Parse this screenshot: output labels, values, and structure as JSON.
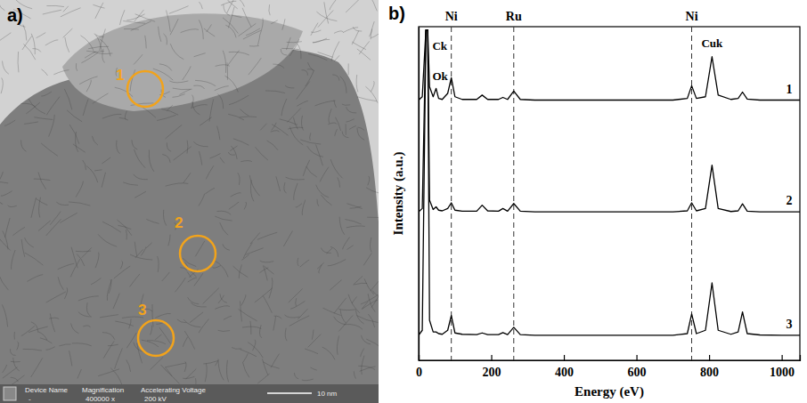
{
  "image_panel": {
    "label": "a)",
    "regions": [
      "1",
      "2",
      "3"
    ],
    "info_bar": {
      "headers": [
        "Device Name",
        "Magnification",
        "Accelerating Voltage"
      ],
      "values": [
        "-",
        "400000 x",
        "200 kV"
      ],
      "scale_bar": "10 nm"
    }
  },
  "chart_data": {
    "type": "line",
    "panel_label": "b)",
    "x_label": "Energy (eV)",
    "y_label": "Intensity (a.u.)",
    "xlim": [
      0,
      1050
    ],
    "xticks": [
      0,
      200,
      400,
      600,
      800,
      1000
    ],
    "ylim": [
      0,
      100
    ],
    "tick_labels": "x",
    "grid": false,
    "x": [
      0,
      10,
      20,
      25,
      30,
      40,
      48,
      55,
      65,
      80,
      90,
      100,
      120,
      160,
      175,
      190,
      220,
      232,
      245,
      262,
      280,
      320,
      500,
      700,
      740,
      752,
      765,
      790,
      808,
      825,
      860,
      880,
      892,
      905,
      940,
      1000,
      1050
    ],
    "series": [
      {
        "name": "1",
        "color": "#000000",
        "values": [
          78,
          79,
          99,
          99,
          82,
          79,
          81.5,
          78.5,
          78.2,
          80,
          84.7,
          79,
          78.2,
          78.2,
          79.5,
          78.2,
          78.2,
          78.8,
          78.2,
          80.7,
          78.2,
          78,
          78,
          78,
          78.5,
          82.3,
          78.5,
          79,
          91,
          79.5,
          78.2,
          78.5,
          80.4,
          78.3,
          78,
          78,
          78
        ]
      },
      {
        "name": "2",
        "color": "#000000",
        "values": [
          44.5,
          45.5,
          99,
          99,
          48,
          45.2,
          46,
          45,
          44.8,
          45.5,
          47.2,
          45,
          44.7,
          44.7,
          46.5,
          44.8,
          44.7,
          45.5,
          44.7,
          47,
          44.7,
          44.5,
          44.5,
          44.5,
          44.8,
          47.2,
          44.8,
          45.5,
          58.5,
          45.5,
          44.6,
          44.8,
          46.9,
          44.7,
          44.5,
          44.5,
          44.5
        ]
      },
      {
        "name": "3",
        "color": "#000000",
        "values": [
          7.5,
          9,
          99,
          99,
          12,
          8.5,
          8.5,
          8,
          7.8,
          9,
          13.4,
          8.2,
          7.8,
          7.7,
          8.2,
          7.7,
          7.7,
          8.3,
          7.7,
          9.9,
          7.7,
          7.5,
          7.5,
          7.5,
          8,
          13.9,
          8,
          9,
          23.2,
          9,
          7.8,
          8.5,
          14.5,
          8,
          7.6,
          7.5,
          7.5
        ]
      }
    ],
    "reference_lines": [
      {
        "value": 90,
        "label": "Ni"
      },
      {
        "value": 262,
        "label": "Ru"
      },
      {
        "value": 752,
        "label": "Ni"
      }
    ],
    "annotations": [
      {
        "text": "Ck",
        "x": 38,
        "y": 93
      },
      {
        "text": "Ok",
        "x": 38,
        "y": 84
      },
      {
        "text": "Cuk",
        "x": 808,
        "y": 94
      }
    ]
  }
}
